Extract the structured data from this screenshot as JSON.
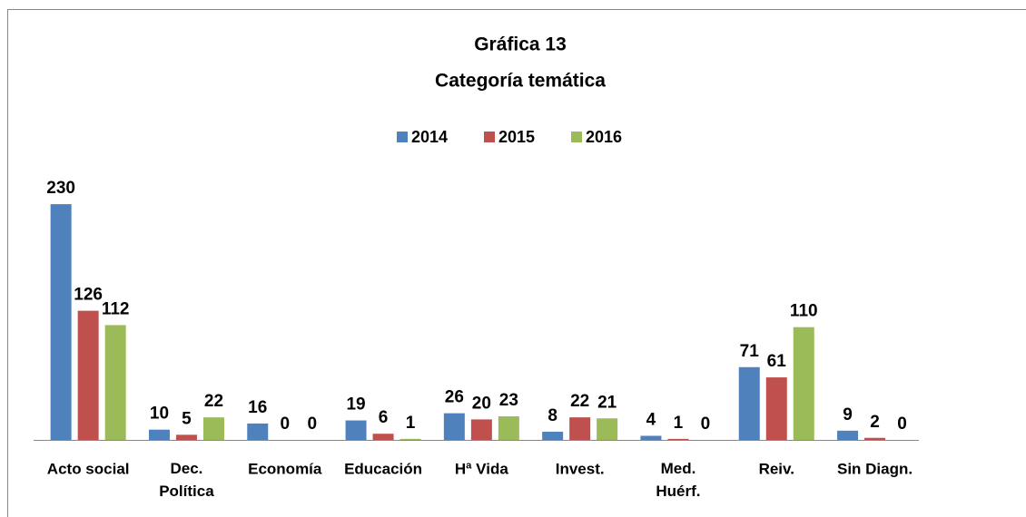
{
  "chart_data": {
    "type": "bar",
    "title": "Gráfica 13",
    "subtitle": "Categoría temática",
    "categories": [
      "Acto social",
      "Dec.\nPolítica",
      "Economía",
      "Educación",
      "Hª Vida",
      "Invest.",
      "Med.\nHuérf.",
      "Reiv.",
      "Sin Diagn."
    ],
    "series": [
      {
        "name": "2014",
        "color": "#4f81bd",
        "values": [
          230,
          10,
          16,
          19,
          26,
          8,
          4,
          71,
          9
        ]
      },
      {
        "name": "2015",
        "color": "#c0504d",
        "values": [
          126,
          5,
          0,
          6,
          20,
          22,
          1,
          61,
          2
        ]
      },
      {
        "name": "2016",
        "color": "#9bbb59",
        "values": [
          112,
          22,
          0,
          1,
          23,
          21,
          0,
          110,
          0
        ]
      }
    ],
    "legend": "top"
  }
}
